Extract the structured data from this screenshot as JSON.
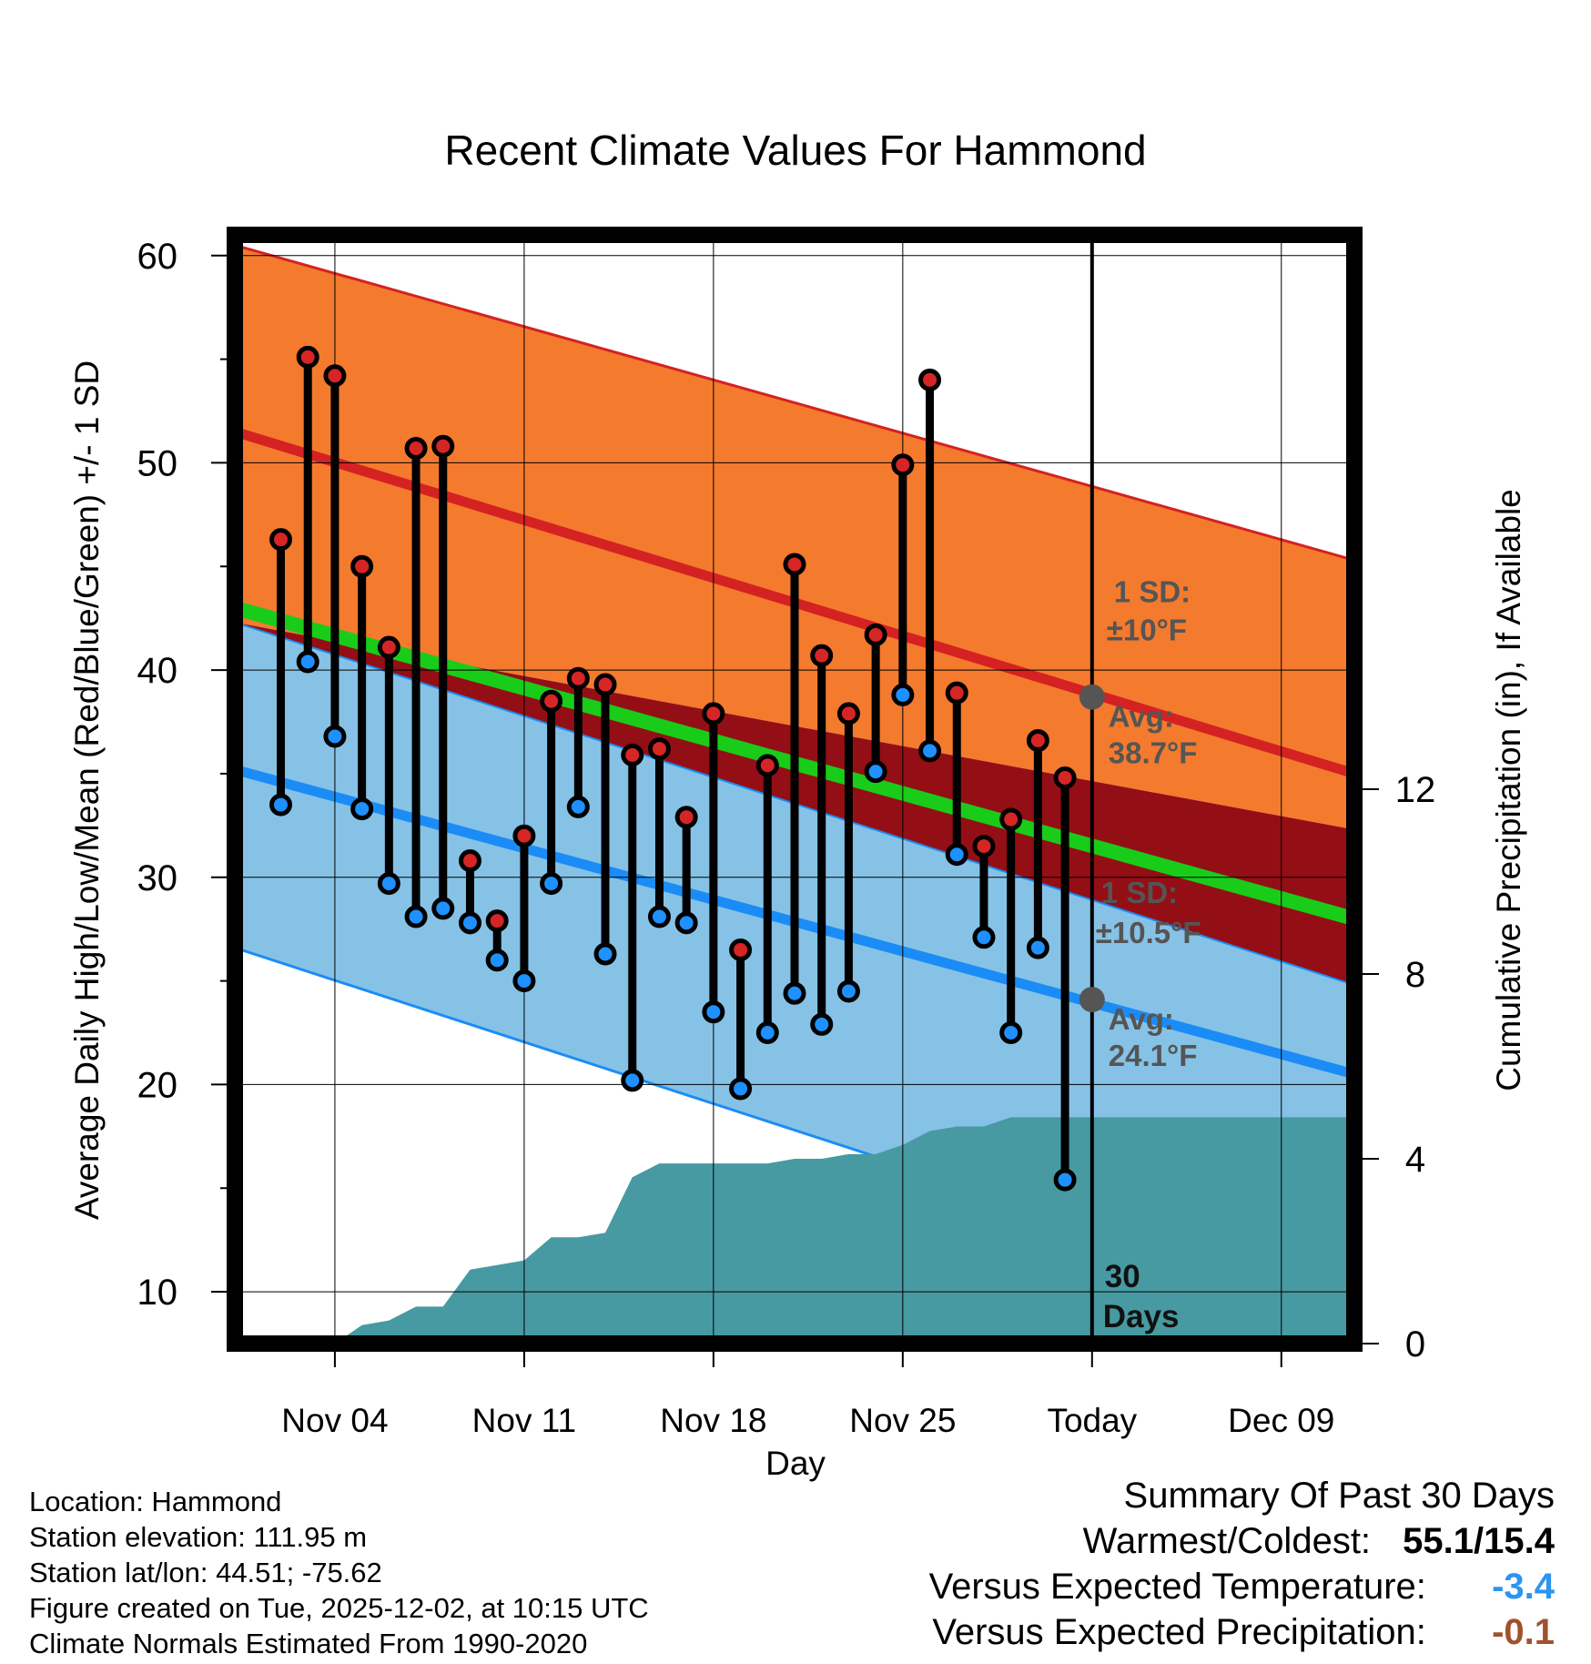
{
  "colors": {
    "high_band": "#f47a2e",
    "high_line": "#d42222",
    "mean_band": "#930f15",
    "mean_line": "#19cc19",
    "low_band": "#86c2e6",
    "low_line": "#1b8cf6",
    "precip_fill": "#479aa2",
    "high_dot": "#d62525",
    "low_dot": "#1e90ff",
    "annot_text": "#555555",
    "departure_temp": "#2b95f0",
    "departure_precip": "#a0522d"
  },
  "chart_data": {
    "type": "line",
    "title": "Recent Climate Values For Hammond",
    "xlabel": "Day",
    "ylabel": "Average Daily High/Low/Mean (Red/Blue/Green) +/- 1 SD",
    "y2label": "Cumulative Precipitation (in), If Available",
    "ylim": [
      7.5,
      61
    ],
    "y2lim": [
      0,
      24
    ],
    "xlim": [
      0.3,
      41.7
    ],
    "yticks": [
      10,
      20,
      30,
      40,
      50,
      60
    ],
    "y2ticks": [
      0,
      4,
      8,
      12
    ],
    "xticks": [
      {
        "day": 4,
        "label": "Nov 04"
      },
      {
        "day": 11,
        "label": "Nov 11"
      },
      {
        "day": 18,
        "label": "Nov 18"
      },
      {
        "day": 25,
        "label": "Nov 25"
      },
      {
        "day": 32,
        "label": "Today"
      },
      {
        "day": 39,
        "label": "Dec 09"
      }
    ],
    "today_day": 32,
    "normals": {
      "days": [
        0.3,
        41.7
      ],
      "high_avg": [
        51.5,
        35.0
      ],
      "high_upper": [
        60.5,
        45.3
      ],
      "high_lower": [
        42.3,
        32.3
      ],
      "mean_avg": [
        43.0,
        28.0
      ],
      "low_avg": [
        35.2,
        20.5
      ],
      "low_upper": [
        42.3,
        24.8
      ],
      "low_lower": [
        26.6,
        9.0
      ]
    },
    "observations": {
      "days": [
        2,
        3,
        4,
        5,
        6,
        7,
        8,
        9,
        10,
        11,
        12,
        13,
        14,
        15,
        16,
        17,
        18,
        19,
        20,
        21,
        22,
        23,
        24,
        25,
        26,
        27,
        28,
        29,
        30,
        31
      ],
      "high": [
        46.3,
        55.1,
        54.2,
        45.0,
        41.1,
        50.7,
        50.8,
        30.8,
        27.9,
        32.0,
        38.5,
        39.6,
        39.3,
        35.9,
        36.2,
        32.9,
        37.9,
        26.5,
        35.4,
        45.1,
        40.7,
        37.9,
        41.7,
        49.9,
        54.0,
        38.9,
        31.5,
        32.8,
        36.6,
        34.8
      ],
      "low": [
        33.5,
        40.4,
        36.8,
        33.3,
        29.7,
        28.1,
        28.5,
        27.8,
        26.0,
        25.0,
        29.7,
        33.4,
        26.3,
        20.2,
        28.1,
        27.8,
        23.5,
        19.8,
        22.5,
        24.4,
        22.9,
        24.5,
        35.1,
        38.8,
        36.1,
        31.1,
        27.1,
        22.5,
        26.6,
        15.4
      ]
    },
    "precip_cumulative": {
      "days": [
        0.3,
        3,
        4,
        5,
        6,
        7,
        8,
        9,
        10,
        11,
        12,
        13,
        14,
        15,
        16,
        17,
        18,
        19,
        20,
        21,
        22,
        23,
        24,
        25,
        26,
        27,
        28,
        29,
        30,
        31,
        41.7
      ],
      "values": [
        0,
        0,
        0,
        0.4,
        0.5,
        0.8,
        0.8,
        1.6,
        1.7,
        1.8,
        2.3,
        2.3,
        2.4,
        3.6,
        3.9,
        3.9,
        3.9,
        3.9,
        3.9,
        4.0,
        4.0,
        4.1,
        4.1,
        4.3,
        4.6,
        4.7,
        4.7,
        4.9,
        4.9,
        4.9,
        4.9
      ]
    },
    "annotations": {
      "high_sd_title": "1 SD:",
      "high_sd_value": "±10°F",
      "high_avg_title": "Avg:",
      "high_avg_value": "38.7°F",
      "high_avg_marker": 38.7,
      "low_sd_title": "1 SD:",
      "low_sd_value": "±10.5°F",
      "low_avg_title": "Avg:",
      "low_avg_value": "24.1°F",
      "low_avg_marker": 24.1,
      "period_number": "30",
      "period_unit": "Days"
    }
  },
  "metadata": {
    "location": "Location: Hammond",
    "elevation": "Station elevation: 111.95 m",
    "latlon": "Station lat/lon: 44.51; -75.62",
    "created": "Figure created on Tue, 2025-12-02, at 10:15 UTC",
    "normals": "Climate Normals Estimated From 1990-2020"
  },
  "summary": {
    "title": "Summary Of Past 30 Days",
    "warm_cold_label": "Warmest/Coldest:",
    "warm_cold_value": "55.1/15.4",
    "temp_label": "Versus Expected Temperature:",
    "temp_value": "-3.4",
    "precip_label": "Versus Expected Precipitation:",
    "precip_value": "-0.1"
  }
}
